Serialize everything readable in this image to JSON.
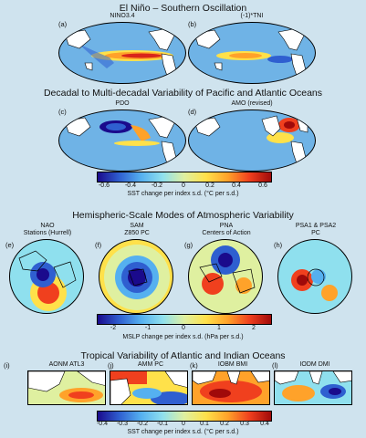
{
  "sections": {
    "enso": {
      "title": "El Niño – Southern Oscillation"
    },
    "decadal": {
      "title": "Decadal to Multi-decadal Variability of Pacific and Atlantic Oceans"
    },
    "atmos": {
      "title": "Hemispheric-Scale Modes of Atmospheric Variability"
    },
    "tropical": {
      "title": "Tropical Variability of Atlantic and Indian Oceans"
    }
  },
  "panels": {
    "a": {
      "letter": "(a)",
      "label": "NINO3.4"
    },
    "b": {
      "letter": "(b)",
      "label": "(-1)*TNI"
    },
    "c": {
      "letter": "(c)",
      "label": "PDO"
    },
    "d": {
      "letter": "(d)",
      "label": "AMO (revised)"
    },
    "e": {
      "letter": "(e)",
      "label1": "NAO",
      "label2": "Stations (Hurrell)"
    },
    "f": {
      "letter": "(f)",
      "label1": "SAM",
      "label2": "Z850 PC"
    },
    "g": {
      "letter": "(g)",
      "label1": "PNA",
      "label2": "Centers of Action"
    },
    "h": {
      "letter": "(h)",
      "label1": "PSA1 & PSA2",
      "label2": "PC"
    },
    "i": {
      "letter": "(i)",
      "label": "AONM  ATL3"
    },
    "j": {
      "letter": "(j)",
      "label": "AMM PC"
    },
    "k": {
      "letter": "(k)",
      "label": "IOBM BMI"
    },
    "l": {
      "letter": "(l)",
      "label": "IODM DMI"
    }
  },
  "colorbars": {
    "sst1": {
      "ticks": [
        "-0.6",
        "-0.4",
        "-0.2",
        "0",
        "0.2",
        "0.4",
        "0.6"
      ],
      "label": "SST change per index s.d. (°C per s.d.)"
    },
    "mslp": {
      "ticks": [
        "-2",
        "-1",
        "0",
        "1",
        "2"
      ],
      "label": "MSLP change per index s.d. (hPa per s.d.)"
    },
    "sst2": {
      "ticks": [
        "-0.4",
        "-0.3",
        "-0.2",
        "-0.1",
        "0",
        "0.1",
        "0.2",
        "0.3",
        "0.4"
      ],
      "label": "SST change per index s.d. (°C per s.d.)"
    }
  },
  "colors": {
    "background": "#cfe3ee",
    "ocean_neutral": "#6fb3e6",
    "land": "#ffffff",
    "colorbar": [
      "#1a0a8c",
      "#2f5fd0",
      "#55b0f0",
      "#8fe0ee",
      "#dff0a0",
      "#ffe14a",
      "#ffa22a",
      "#f0401e",
      "#a00a0a"
    ]
  }
}
